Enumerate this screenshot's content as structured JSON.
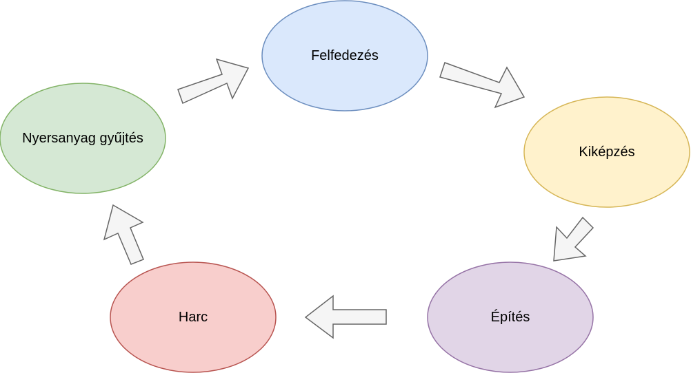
{
  "diagram": {
    "nodes": {
      "felfedezes": {
        "label": "Felfedezés",
        "fill": "#dae8fc",
        "stroke": "#6c8ebf"
      },
      "kikepzes": {
        "label": "Kiképzés",
        "fill": "#fff2cc",
        "stroke": "#d6b656"
      },
      "epites": {
        "label": "Építés",
        "fill": "#e1d5e7",
        "stroke": "#9673a6"
      },
      "harc": {
        "label": "Harc",
        "fill": "#f8cecc",
        "stroke": "#b85450"
      },
      "nyersanyag": {
        "label": "Nyersanyag gyűjtés",
        "fill": "#d5e8d4",
        "stroke": "#82b366"
      }
    },
    "arrow_style": {
      "fill": "#f5f5f5",
      "stroke": "#666666"
    }
  }
}
